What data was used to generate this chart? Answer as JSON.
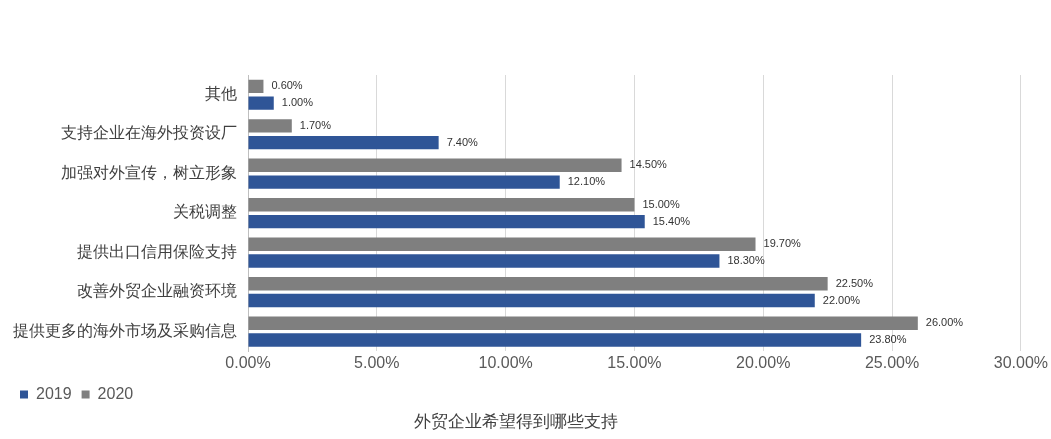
{
  "chart_data": {
    "type": "bar",
    "orientation": "horizontal",
    "title": "外贸企业希望得到哪些支持",
    "categories": [
      "其他",
      "支持企业在海外投资设厂",
      "加强对外宣传，树立形象",
      "关税调整",
      "提供出口信用保险支持",
      "改善外贸企业融资环境",
      "提供更多的海外市场及采购信息"
    ],
    "series": [
      {
        "name": "2020",
        "color": "#7f7f7f",
        "values": [
          0.6,
          1.7,
          14.5,
          15.0,
          19.7,
          22.5,
          26.0
        ],
        "value_labels": [
          "0.60%",
          "1.70%",
          "14.50%",
          "15.00%",
          "19.70%",
          "22.50%",
          "26.00%"
        ]
      },
      {
        "name": "2019",
        "color": "#2f5597",
        "values": [
          1.0,
          7.4,
          12.1,
          15.4,
          18.3,
          22.0,
          23.8
        ],
        "value_labels": [
          "1.00%",
          "7.40%",
          "12.10%",
          "15.40%",
          "18.30%",
          "22.00%",
          "23.80%"
        ]
      }
    ],
    "xlim": [
      0,
      30
    ],
    "xticks": [
      {
        "value": 0,
        "label": "0.00%"
      },
      {
        "value": 5,
        "label": "5.00%"
      },
      {
        "value": 10,
        "label": "10.00%"
      },
      {
        "value": 15,
        "label": "15.00%"
      },
      {
        "value": 20,
        "label": "20.00%"
      },
      {
        "value": 25,
        "label": "25.00%"
      },
      {
        "value": 30,
        "label": "30.00%"
      }
    ],
    "grid": "x",
    "legend": "bottom left"
  }
}
